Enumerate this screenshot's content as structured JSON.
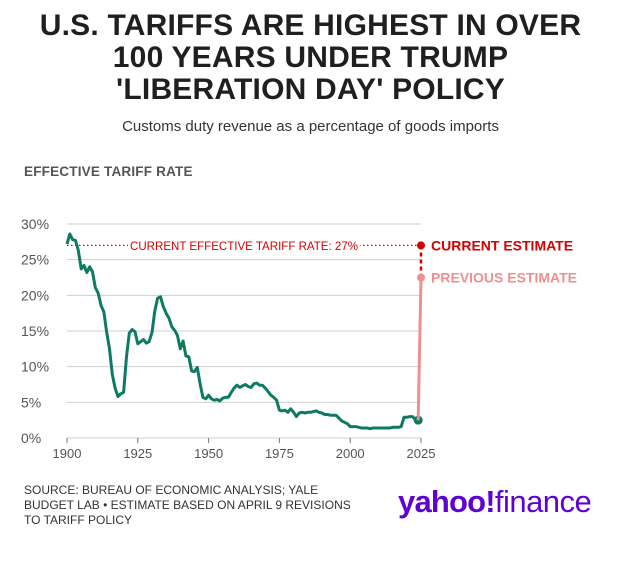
{
  "title_lines": [
    "U.S. TARIFFS ARE HIGHEST IN OVER",
    "100 YEARS UNDER TRUMP",
    "'LIBERATION DAY' POLICY"
  ],
  "subtitle": "Customs duty revenue as a percentage of goods imports",
  "section_label": "EFFECTIVE TARIFF RATE",
  "source_text": "SOURCE: BUREAU OF ECONOMIC ANALYSIS; YALE BUDGET LAB • ESTIMATE BASED ON APRIL 9 REVISIONS TO TARIFF POLICY",
  "logo": {
    "yahoo": "yahoo",
    "bang": "!",
    "finance": "finance"
  },
  "colors": {
    "line": "#0e7a64",
    "current": "#d60000",
    "previous": "#ef8f8f",
    "grid": "#cfcfcf",
    "logo": "#5f01d1"
  },
  "chart_data": {
    "type": "line",
    "title": "U.S. TARIFFS ARE HIGHEST IN OVER 100 YEARS UNDER TRUMP 'LIBERATION DAY' POLICY",
    "xlabel": "",
    "ylabel": "EFFECTIVE TARIFF RATE",
    "xlim": [
      1900,
      2025
    ],
    "ylim": [
      0,
      30
    ],
    "x_ticks": [
      1900,
      1925,
      1950,
      1975,
      2000,
      2025
    ],
    "x_tick_labels": [
      "1900",
      "1925",
      "1950",
      "1975",
      "2000",
      "2025"
    ],
    "y_ticks": [
      0,
      5,
      10,
      15,
      20,
      25,
      30
    ],
    "y_tick_labels": [
      "0%",
      "5%",
      "10%",
      "15%",
      "20%",
      "25%",
      "30%"
    ],
    "series": [
      {
        "name": "Effective tariff rate",
        "x": [
          1900,
          1901,
          1902,
          1903,
          1904,
          1905,
          1906,
          1907,
          1908,
          1909,
          1910,
          1911,
          1912,
          1913,
          1914,
          1915,
          1916,
          1917,
          1918,
          1919,
          1920,
          1921,
          1922,
          1923,
          1924,
          1925,
          1926,
          1927,
          1928,
          1929,
          1930,
          1931,
          1932,
          1933,
          1934,
          1935,
          1936,
          1937,
          1938,
          1939,
          1940,
          1941,
          1942,
          1943,
          1944,
          1945,
          1946,
          1947,
          1948,
          1949,
          1950,
          1951,
          1952,
          1953,
          1954,
          1955,
          1956,
          1957,
          1958,
          1959,
          1960,
          1961,
          1962,
          1963,
          1964,
          1965,
          1966,
          1967,
          1968,
          1969,
          1970,
          1971,
          1972,
          1973,
          1974,
          1975,
          1976,
          1977,
          1978,
          1979,
          1980,
          1981,
          1982,
          1983,
          1984,
          1985,
          1986,
          1987,
          1988,
          1989,
          1990,
          1991,
          1992,
          1993,
          1994,
          1995,
          1996,
          1997,
          1998,
          1999,
          2000,
          2001,
          2002,
          2003,
          2004,
          2005,
          2006,
          2007,
          2008,
          2009,
          2010,
          2011,
          2012,
          2013,
          2014,
          2015,
          2016,
          2017,
          2018,
          2019,
          2020,
          2021,
          2022,
          2023,
          2024
        ],
        "values": [
          27.2,
          28.6,
          27.8,
          27.7,
          26.3,
          23.7,
          24.2,
          23.2,
          24.0,
          23.3,
          21.1,
          20.3,
          18.6,
          17.7,
          14.9,
          12.5,
          8.9,
          7.0,
          5.8,
          6.2,
          6.4,
          11.4,
          14.7,
          15.2,
          14.9,
          13.2,
          13.5,
          13.8,
          13.3,
          13.5,
          14.8,
          17.8,
          19.6,
          19.8,
          18.4,
          17.5,
          16.8,
          15.6,
          15.1,
          14.4,
          12.5,
          13.6,
          11.5,
          11.4,
          9.4,
          9.3,
          9.9,
          7.6,
          5.7,
          5.5,
          6.0,
          5.5,
          5.3,
          5.4,
          5.2,
          5.6,
          5.7,
          5.7,
          6.4,
          7.0,
          7.4,
          7.1,
          7.3,
          7.5,
          7.2,
          7.1,
          7.6,
          7.7,
          7.4,
          7.4,
          7.0,
          6.5,
          6.0,
          5.7,
          5.3,
          3.9,
          3.8,
          3.9,
          3.6,
          4.1,
          3.6,
          3.0,
          3.5,
          3.6,
          3.5,
          3.6,
          3.6,
          3.7,
          3.8,
          3.6,
          3.5,
          3.3,
          3.3,
          3.2,
          3.2,
          3.2,
          2.8,
          2.4,
          2.2,
          2.0,
          1.6,
          1.6,
          1.6,
          1.5,
          1.4,
          1.4,
          1.4,
          1.3,
          1.4,
          1.4,
          1.4,
          1.4,
          1.4,
          1.4,
          1.4,
          1.5,
          1.5,
          1.5,
          1.6,
          2.9,
          2.9,
          3.0,
          3.0,
          2.6,
          2.5
        ]
      }
    ],
    "estimates": [
      {
        "name": "CURRENT ESTIMATE",
        "x": 2025,
        "value": 27
      },
      {
        "name": "PREVIOUS ESTIMATE",
        "x": 2025,
        "value": 22.5
      }
    ],
    "annotation": {
      "text": "CURRENT EFFECTIVE TARIFF RATE: 27%",
      "value": 27
    },
    "endpoint": {
      "x": 2024,
      "value": 2.5
    }
  }
}
